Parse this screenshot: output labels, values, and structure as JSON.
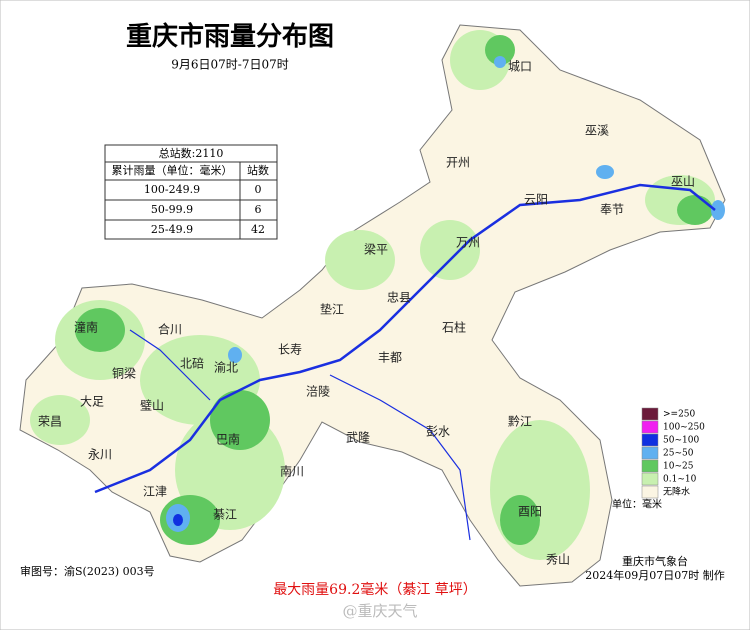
{
  "header": {
    "title": "重庆市雨量分布图",
    "subtitle": "9月6日07时-7日07时"
  },
  "table": {
    "total": "总站数:2110",
    "headers": [
      "累计雨量（单位：毫米）",
      "站数"
    ],
    "rows": [
      [
        "100-249.9",
        "0"
      ],
      [
        "50-99.9",
        "6"
      ],
      [
        "25-49.9",
        "42"
      ]
    ]
  },
  "legend": {
    "items": [
      {
        "label": ">=250",
        "color": "#6b1a3a"
      },
      {
        "label": "100~250",
        "color": "#f020f0"
      },
      {
        "label": "50~100",
        "color": "#1030e0"
      },
      {
        "label": "25~50",
        "color": "#60b0f0"
      },
      {
        "label": "10~25",
        "color": "#60c860"
      },
      {
        "label": "0.1~10",
        "color": "#c8f0b0"
      },
      {
        "label": "无降水",
        "color": "#fbf5e3"
      }
    ],
    "unit": "单位：毫米"
  },
  "districts": [
    "城口",
    "巫溪",
    "开州",
    "云阳",
    "奉节",
    "巫山",
    "万州",
    "梁平",
    "忠县",
    "垫江",
    "石柱",
    "丰都",
    "长寿",
    "涪陵",
    "潼南",
    "合川",
    "北碚",
    "渝北",
    "铜梁",
    "大足",
    "璧山",
    "荣昌",
    "永川",
    "巴南",
    "江津",
    "綦江",
    "南川",
    "武隆",
    "彭水",
    "黔江",
    "酉阳",
    "秀山"
  ],
  "footer": {
    "approval": "审图号：渝S(2023) 003号",
    "max_rain": "最大雨量69.2毫米（綦江 草坪）",
    "issuer": "重庆市气象台",
    "made": "2024年09月07日07时 制作",
    "watermark": "@重庆天气"
  }
}
